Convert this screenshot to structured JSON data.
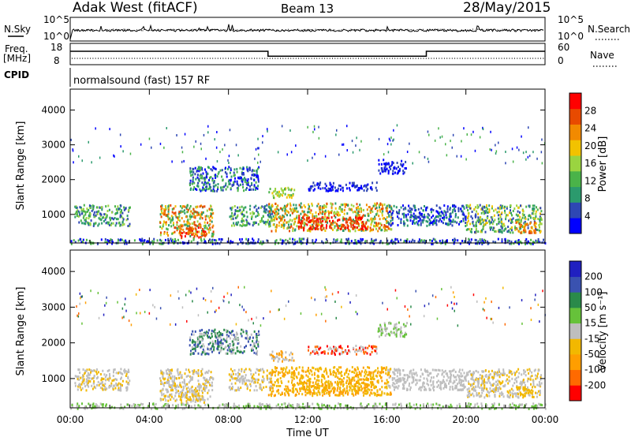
{
  "header": {
    "station": "Adak West (fitACF)",
    "beam": "Beam 13",
    "date": "28/May/2015"
  },
  "side_labels": {
    "nsky": "N.Sky",
    "freq_line1": "Freq.",
    "freq_line2": "[MHz]",
    "cpid": "CPID",
    "nsearch": "N.Search",
    "nave": "Nave"
  },
  "cpid_text": "normalsound (fast) 157 RF",
  "colors": {
    "power": [
      "#0000ff",
      "#2e47b4",
      "#2b9a6d",
      "#4ab349",
      "#9ad440",
      "#f2c200",
      "#f28a00",
      "#e84a00",
      "#ff0000"
    ],
    "velocity": [
      "#ff0000",
      "#ff6a00",
      "#ff9e00",
      "#f2b800",
      "#bebebe",
      "#66c23a",
      "#2a8a4a",
      "#3a52b0",
      "#2020c0"
    ]
  },
  "chart_data": [
    {
      "type": "line",
      "title": "N.Sky / N.Search",
      "left_ticks": [
        "10^5",
        "10^0"
      ],
      "right_ticks": [
        "10^5",
        "10^0"
      ],
      "x_ticks": [
        "00:00",
        "04:00",
        "08:00",
        "12:00",
        "16:00",
        "20:00",
        "00:00"
      ]
    },
    {
      "type": "line",
      "title": "Freq. / Nave",
      "left_ticks": [
        "18",
        "8"
      ],
      "right_ticks": [
        "60",
        "0"
      ],
      "series": [
        {
          "name": "Freq.",
          "x": [
            0,
            10,
            10,
            18,
            18,
            24
          ],
          "y": [
            13.8,
            13.8,
            10.6,
            10.6,
            13.8,
            13.8
          ]
        }
      ]
    },
    {
      "type": "heatmap",
      "xlabel": "",
      "ylabel": "Slant Range [km]",
      "xlim": [
        0,
        24
      ],
      "ylim": [
        180,
        4600
      ],
      "y_ticks": [
        "1000",
        "2000",
        "3000",
        "4000"
      ],
      "x_ticks": [
        "00:00",
        "04:00",
        "08:00",
        "12:00",
        "16:00",
        "20:00",
        "00:00"
      ],
      "colorbar_label": "Power [dB]",
      "colorbar_ticks": [
        "4",
        "8",
        "12",
        "16",
        "20",
        "24",
        "28"
      ]
    },
    {
      "type": "heatmap",
      "xlabel": "Time UT",
      "ylabel": "Slant Range [km]",
      "xlim": [
        0,
        24
      ],
      "ylim": [
        180,
        4600
      ],
      "y_ticks": [
        "1000",
        "2000",
        "3000",
        "4000"
      ],
      "x_ticks": [
        "00:00",
        "04:00",
        "08:00",
        "12:00",
        "16:00",
        "20:00",
        "00:00"
      ],
      "colorbar_label": "Velocity [m s⁻¹]",
      "colorbar_ticks": [
        "200",
        "100",
        "50",
        "15",
        "-15",
        "-50",
        "-100",
        "-200"
      ]
    }
  ]
}
